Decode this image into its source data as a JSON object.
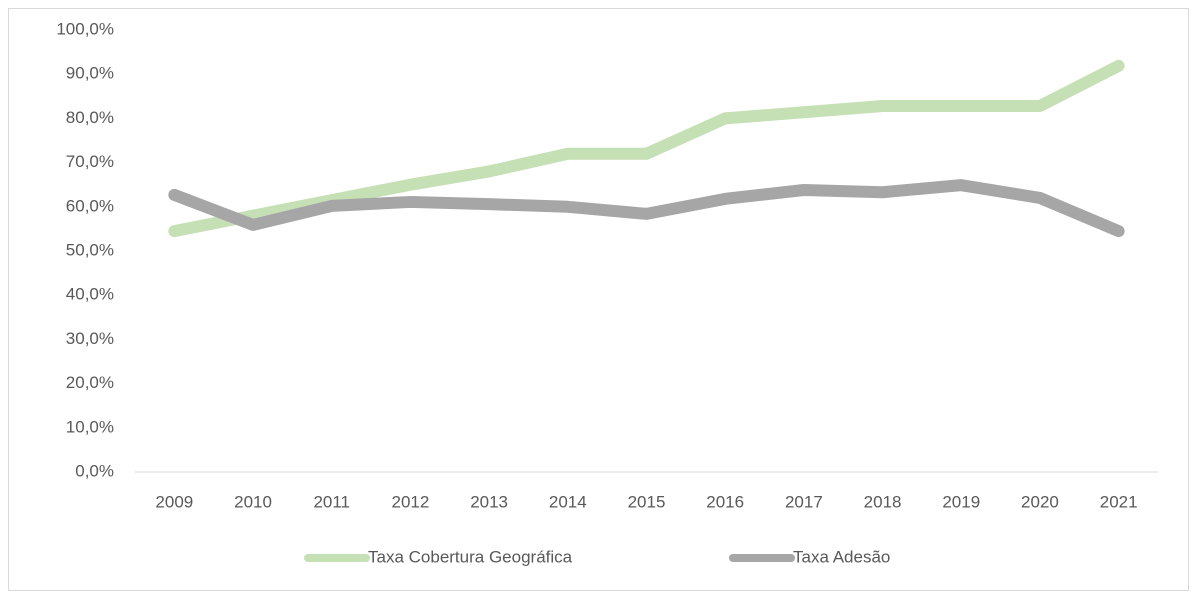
{
  "chart_data": {
    "type": "line",
    "categories": [
      "2009",
      "2010",
      "2011",
      "2012",
      "2013",
      "2014",
      "2015",
      "2016",
      "2017",
      "2018",
      "2019",
      "2020",
      "2021"
    ],
    "series": [
      {
        "name": "Taxa Cobertura Geográfica",
        "color": "#c5e0b4",
        "values": [
          54.5,
          58,
          61.5,
          65,
          68,
          72,
          72,
          80,
          81.4,
          82.8,
          82.8,
          82.8,
          91.9
        ]
      },
      {
        "name": "Taxa Adesão",
        "color": "#a6a6a6",
        "values": [
          62.7,
          55.9,
          60.2,
          61.1,
          60.6,
          60,
          58.4,
          61.8,
          63.8,
          63.3,
          64.9,
          62,
          54.5
        ]
      }
    ],
    "ylim": [
      0,
      100
    ],
    "yticks": [
      {
        "value": 0,
        "label": "0,0%"
      },
      {
        "value": 10,
        "label": "10,0%"
      },
      {
        "value": 20,
        "label": "20,0%"
      },
      {
        "value": 30,
        "label": "30,0%"
      },
      {
        "value": 40,
        "label": "40,0%"
      },
      {
        "value": 50,
        "label": "50,0%"
      },
      {
        "value": 60,
        "label": "60,0%"
      },
      {
        "value": 70,
        "label": "70,0%"
      },
      {
        "value": 80,
        "label": "80,0%"
      },
      {
        "value": 90,
        "label": "90,0%"
      },
      {
        "value": 100,
        "label": "100,0%"
      }
    ],
    "grid": false,
    "legend": "bottom"
  }
}
